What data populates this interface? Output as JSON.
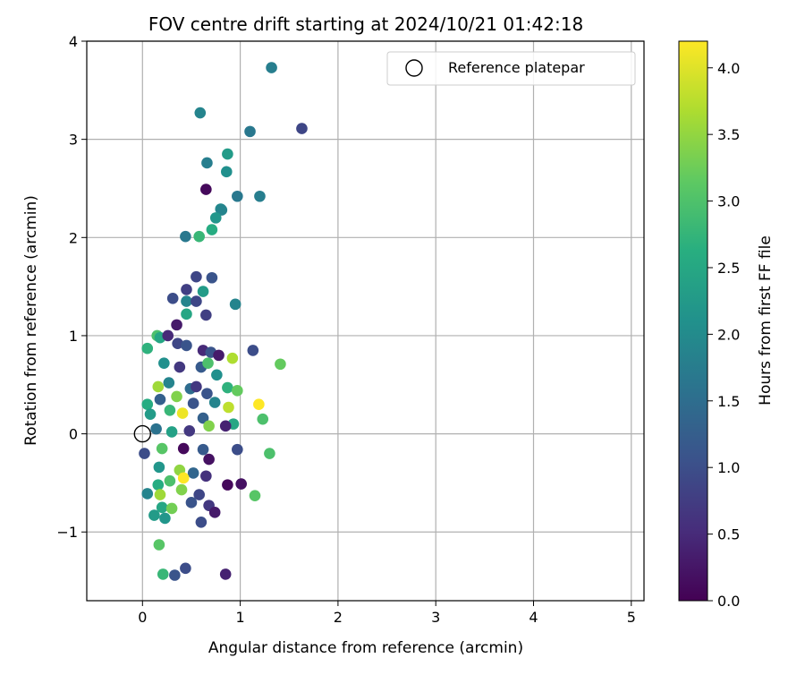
{
  "chart_data": {
    "type": "scatter",
    "title": "FOV centre drift starting at 2024/10/21 01:42:18",
    "xlabel": "Angular distance from reference (arcmin)",
    "ylabel": "Rotation from reference (arcmin)",
    "xlim": [
      -0.57,
      5.13
    ],
    "ylim": [
      -1.7,
      4.0
    ],
    "xticks": [
      0,
      1,
      2,
      3,
      4,
      5
    ],
    "xtick_labels": [
      "0",
      "1",
      "2",
      "3",
      "4",
      "5"
    ],
    "yticks": [
      -1,
      0,
      1,
      2,
      3,
      4
    ],
    "ytick_labels": [
      "−1",
      "0",
      "1",
      "2",
      "3",
      "4"
    ],
    "grid": true,
    "legend": {
      "position": "top-right",
      "entries": [
        "Reference platepar"
      ]
    },
    "reference_point": {
      "x": 0,
      "y": 0
    },
    "colorbar": {
      "label": "Hours from first FF file",
      "range": [
        0,
        4.2
      ],
      "colormap": "viridis",
      "ticks": [
        0.0,
        0.5,
        1.0,
        1.5,
        2.0,
        2.5,
        3.0,
        3.5,
        4.0
      ],
      "tick_labels": [
        "0.0",
        "0.5",
        "1.0",
        "1.5",
        "2.0",
        "2.5",
        "3.0",
        "3.5",
        "4.0"
      ]
    },
    "points": [
      [
        1.32,
        3.73,
        1.8
      ],
      [
        1.63,
        3.11,
        0.9
      ],
      [
        0.59,
        3.27,
        1.9
      ],
      [
        1.1,
        3.08,
        1.7
      ],
      [
        0.87,
        2.85,
        2.3
      ],
      [
        0.66,
        2.76,
        1.8
      ],
      [
        0.86,
        2.67,
        2.1
      ],
      [
        0.65,
        2.49,
        0.1
      ],
      [
        0.97,
        2.42,
        1.7
      ],
      [
        1.2,
        2.42,
        1.8
      ],
      [
        0.8,
        2.29,
        2.0
      ],
      [
        0.81,
        2.28,
        1.9
      ],
      [
        0.75,
        2.2,
        2.2
      ],
      [
        0.71,
        2.08,
        2.6
      ],
      [
        0.44,
        2.01,
        1.7
      ],
      [
        0.58,
        2.01,
        2.8
      ],
      [
        0.55,
        1.6,
        0.9
      ],
      [
        0.71,
        1.59,
        1.1
      ],
      [
        0.45,
        1.47,
        0.8
      ],
      [
        0.62,
        1.45,
        2.3
      ],
      [
        0.31,
        1.38,
        1.0
      ],
      [
        0.45,
        1.35,
        1.9
      ],
      [
        0.55,
        1.35,
        0.9
      ],
      [
        0.95,
        1.32,
        1.9
      ],
      [
        0.65,
        1.21,
        0.8
      ],
      [
        0.45,
        1.22,
        2.5
      ],
      [
        0.35,
        1.11,
        0.3
      ],
      [
        0.15,
        1.0,
        3.0
      ],
      [
        0.18,
        0.98,
        2.5
      ],
      [
        0.26,
        1.0,
        0.5
      ],
      [
        0.05,
        0.87,
        2.7
      ],
      [
        0.36,
        0.92,
        0.9
      ],
      [
        0.45,
        0.9,
        1.1
      ],
      [
        0.62,
        0.85,
        0.5
      ],
      [
        0.7,
        0.83,
        1.1
      ],
      [
        0.78,
        0.8,
        0.3
      ],
      [
        0.92,
        0.77,
        3.7
      ],
      [
        1.13,
        0.85,
        1.0
      ],
      [
        1.41,
        0.71,
        3.2
      ],
      [
        0.22,
        0.72,
        2.1
      ],
      [
        0.38,
        0.68,
        0.7
      ],
      [
        0.6,
        0.68,
        1.2
      ],
      [
        0.67,
        0.72,
        3.0
      ],
      [
        0.76,
        0.6,
        2.1
      ],
      [
        0.16,
        0.48,
        3.6
      ],
      [
        0.27,
        0.52,
        1.9
      ],
      [
        0.49,
        0.46,
        1.5
      ],
      [
        0.55,
        0.48,
        0.7
      ],
      [
        0.66,
        0.41,
        1.1
      ],
      [
        0.87,
        0.47,
        2.7
      ],
      [
        0.97,
        0.44,
        3.2
      ],
      [
        0.05,
        0.3,
        2.6
      ],
      [
        0.18,
        0.35,
        1.3
      ],
      [
        0.35,
        0.38,
        3.4
      ],
      [
        0.52,
        0.31,
        1.1
      ],
      [
        0.74,
        0.32,
        1.9
      ],
      [
        0.88,
        0.27,
        3.8
      ],
      [
        1.19,
        0.3,
        4.2
      ],
      [
        0.08,
        0.2,
        2.3
      ],
      [
        0.28,
        0.24,
        2.8
      ],
      [
        0.41,
        0.21,
        4.1
      ],
      [
        0.62,
        0.16,
        1.3
      ],
      [
        0.93,
        0.1,
        2.5
      ],
      [
        1.23,
        0.15,
        3.0
      ],
      [
        0.14,
        0.05,
        1.6
      ],
      [
        0.3,
        0.02,
        2.4
      ],
      [
        0.48,
        0.03,
        0.7
      ],
      [
        0.68,
        0.08,
        3.4
      ],
      [
        0.85,
        0.08,
        0.4
      ],
      [
        0.02,
        -0.2,
        1.0
      ],
      [
        0.2,
        -0.15,
        3.1
      ],
      [
        0.42,
        -0.15,
        0.1
      ],
      [
        0.62,
        -0.16,
        1.2
      ],
      [
        0.97,
        -0.16,
        1.0
      ],
      [
        1.3,
        -0.2,
        3.0
      ],
      [
        0.17,
        -0.34,
        2.2
      ],
      [
        0.38,
        -0.37,
        3.5
      ],
      [
        0.52,
        -0.4,
        1.4
      ],
      [
        0.68,
        -0.26,
        0.2
      ],
      [
        0.42,
        -0.45,
        4.2
      ],
      [
        0.16,
        -0.52,
        2.6
      ],
      [
        0.28,
        -0.48,
        3.0
      ],
      [
        0.65,
        -0.43,
        0.6
      ],
      [
        0.87,
        -0.52,
        0.1
      ],
      [
        1.01,
        -0.51,
        0.2
      ],
      [
        0.05,
        -0.61,
        1.9
      ],
      [
        0.18,
        -0.62,
        3.6
      ],
      [
        0.4,
        -0.57,
        3.4
      ],
      [
        0.58,
        -0.62,
        0.9
      ],
      [
        1.15,
        -0.63,
        3.1
      ],
      [
        0.2,
        -0.75,
        2.5
      ],
      [
        0.3,
        -0.76,
        3.3
      ],
      [
        0.5,
        -0.7,
        1.1
      ],
      [
        0.68,
        -0.73,
        0.7
      ],
      [
        0.74,
        -0.8,
        0.3
      ],
      [
        0.12,
        -0.83,
        2.3
      ],
      [
        0.23,
        -0.86,
        2.2
      ],
      [
        0.6,
        -0.9,
        1.0
      ],
      [
        0.17,
        -1.13,
        3.1
      ],
      [
        0.21,
        -1.43,
        2.8
      ],
      [
        0.33,
        -1.44,
        1.1
      ],
      [
        0.44,
        -1.37,
        1.0
      ],
      [
        0.85,
        -1.43,
        0.4
      ]
    ]
  }
}
